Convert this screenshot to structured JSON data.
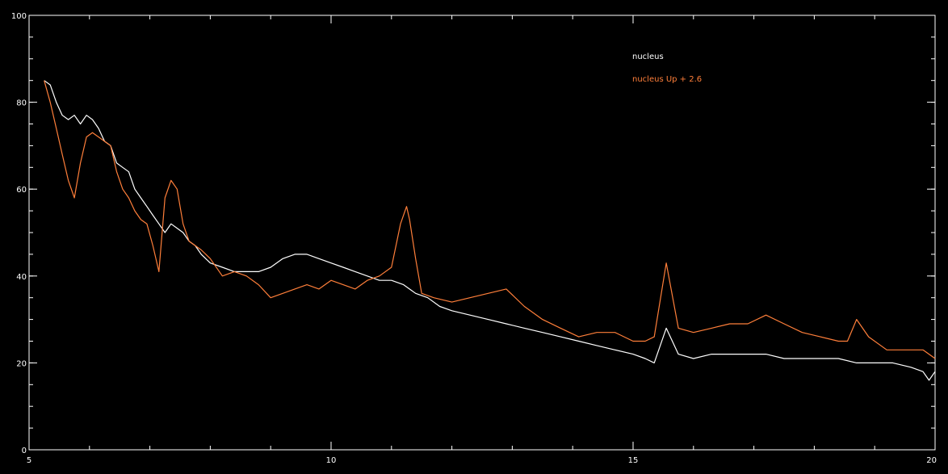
{
  "chart_data": {
    "type": "line",
    "xlim": [
      5,
      20
    ],
    "ylim": [
      0,
      100
    ],
    "xticks_major": [
      5,
      10,
      15,
      20
    ],
    "yticks_major": [
      0,
      20,
      40,
      60,
      80,
      100
    ],
    "xticks_minor_step": 1,
    "yticks_minor_step": 5,
    "grid": false,
    "background": "#000000",
    "axis_color": "#ffffff",
    "legend_position": "top-right",
    "series": [
      {
        "name": "nucleus",
        "color": "#ffffff",
        "x": [
          5.25,
          5.35,
          5.45,
          5.55,
          5.65,
          5.75,
          5.85,
          5.95,
          6.05,
          6.15,
          6.25,
          6.35,
          6.45,
          6.55,
          6.65,
          6.75,
          6.85,
          6.95,
          7.05,
          7.15,
          7.25,
          7.35,
          7.45,
          7.55,
          7.65,
          7.75,
          7.85,
          8.0,
          8.2,
          8.4,
          8.6,
          8.8,
          9.0,
          9.2,
          9.4,
          9.6,
          9.8,
          10.0,
          10.2,
          10.4,
          10.6,
          10.8,
          11.0,
          11.2,
          11.4,
          11.6,
          11.8,
          12.0,
          12.3,
          12.6,
          12.9,
          13.2,
          13.5,
          13.8,
          14.1,
          14.4,
          14.7,
          15.0,
          15.2,
          15.35,
          15.55,
          15.75,
          16.0,
          16.3,
          16.6,
          16.9,
          17.2,
          17.5,
          17.8,
          18.1,
          18.4,
          18.7,
          19.0,
          19.3,
          19.6,
          19.8,
          19.9,
          20.0
        ],
        "y": [
          85,
          84,
          80,
          77,
          76,
          77,
          75,
          77,
          76,
          74,
          71,
          70,
          66,
          65,
          64,
          60,
          58,
          56,
          54,
          52,
          50,
          52,
          51,
          50,
          48,
          47,
          45,
          43,
          42,
          41,
          41,
          41,
          42,
          44,
          45,
          45,
          44,
          43,
          42,
          41,
          40,
          39,
          39,
          38,
          36,
          35,
          33,
          32,
          31,
          30,
          29,
          28,
          27,
          26,
          25,
          24,
          23,
          22,
          21,
          20,
          28,
          22,
          21,
          22,
          22,
          22,
          22,
          21,
          21,
          21,
          21,
          20,
          20,
          20,
          19,
          18,
          16,
          18
        ]
      },
      {
        "name": "nucleus Up + 2.6",
        "color": "#ff7f3a",
        "x": [
          5.25,
          5.35,
          5.45,
          5.55,
          5.65,
          5.75,
          5.85,
          5.95,
          6.05,
          6.15,
          6.25,
          6.35,
          6.45,
          6.55,
          6.65,
          6.75,
          6.85,
          6.95,
          7.05,
          7.15,
          7.25,
          7.35,
          7.45,
          7.55,
          7.65,
          7.75,
          7.85,
          8.0,
          8.2,
          8.4,
          8.6,
          8.8,
          9.0,
          9.2,
          9.4,
          9.6,
          9.8,
          10.0,
          10.2,
          10.4,
          10.6,
          10.8,
          11.0,
          11.15,
          11.25,
          11.3,
          11.4,
          11.5,
          11.7,
          12.0,
          12.3,
          12.6,
          12.9,
          13.2,
          13.5,
          13.8,
          14.1,
          14.4,
          14.7,
          15.0,
          15.2,
          15.35,
          15.55,
          15.75,
          16.0,
          16.3,
          16.6,
          16.9,
          17.2,
          17.5,
          17.8,
          18.1,
          18.4,
          18.55,
          18.7,
          18.9,
          19.2,
          19.5,
          19.8,
          20.0
        ],
        "y": [
          85,
          80,
          74,
          68,
          62,
          58,
          66,
          72,
          73,
          72,
          71,
          70,
          64,
          60,
          58,
          55,
          53,
          52,
          47,
          41,
          58,
          62,
          60,
          52,
          48,
          47,
          46,
          44,
          40,
          41,
          40,
          38,
          35,
          36,
          37,
          38,
          37,
          39,
          38,
          37,
          39,
          40,
          42,
          52,
          56,
          53,
          44,
          36,
          35,
          34,
          35,
          36,
          37,
          33,
          30,
          28,
          26,
          27,
          27,
          25,
          25,
          26,
          43,
          28,
          27,
          28,
          29,
          29,
          31,
          29,
          27,
          26,
          25,
          25,
          30,
          26,
          23,
          23,
          23,
          21
        ]
      }
    ]
  }
}
